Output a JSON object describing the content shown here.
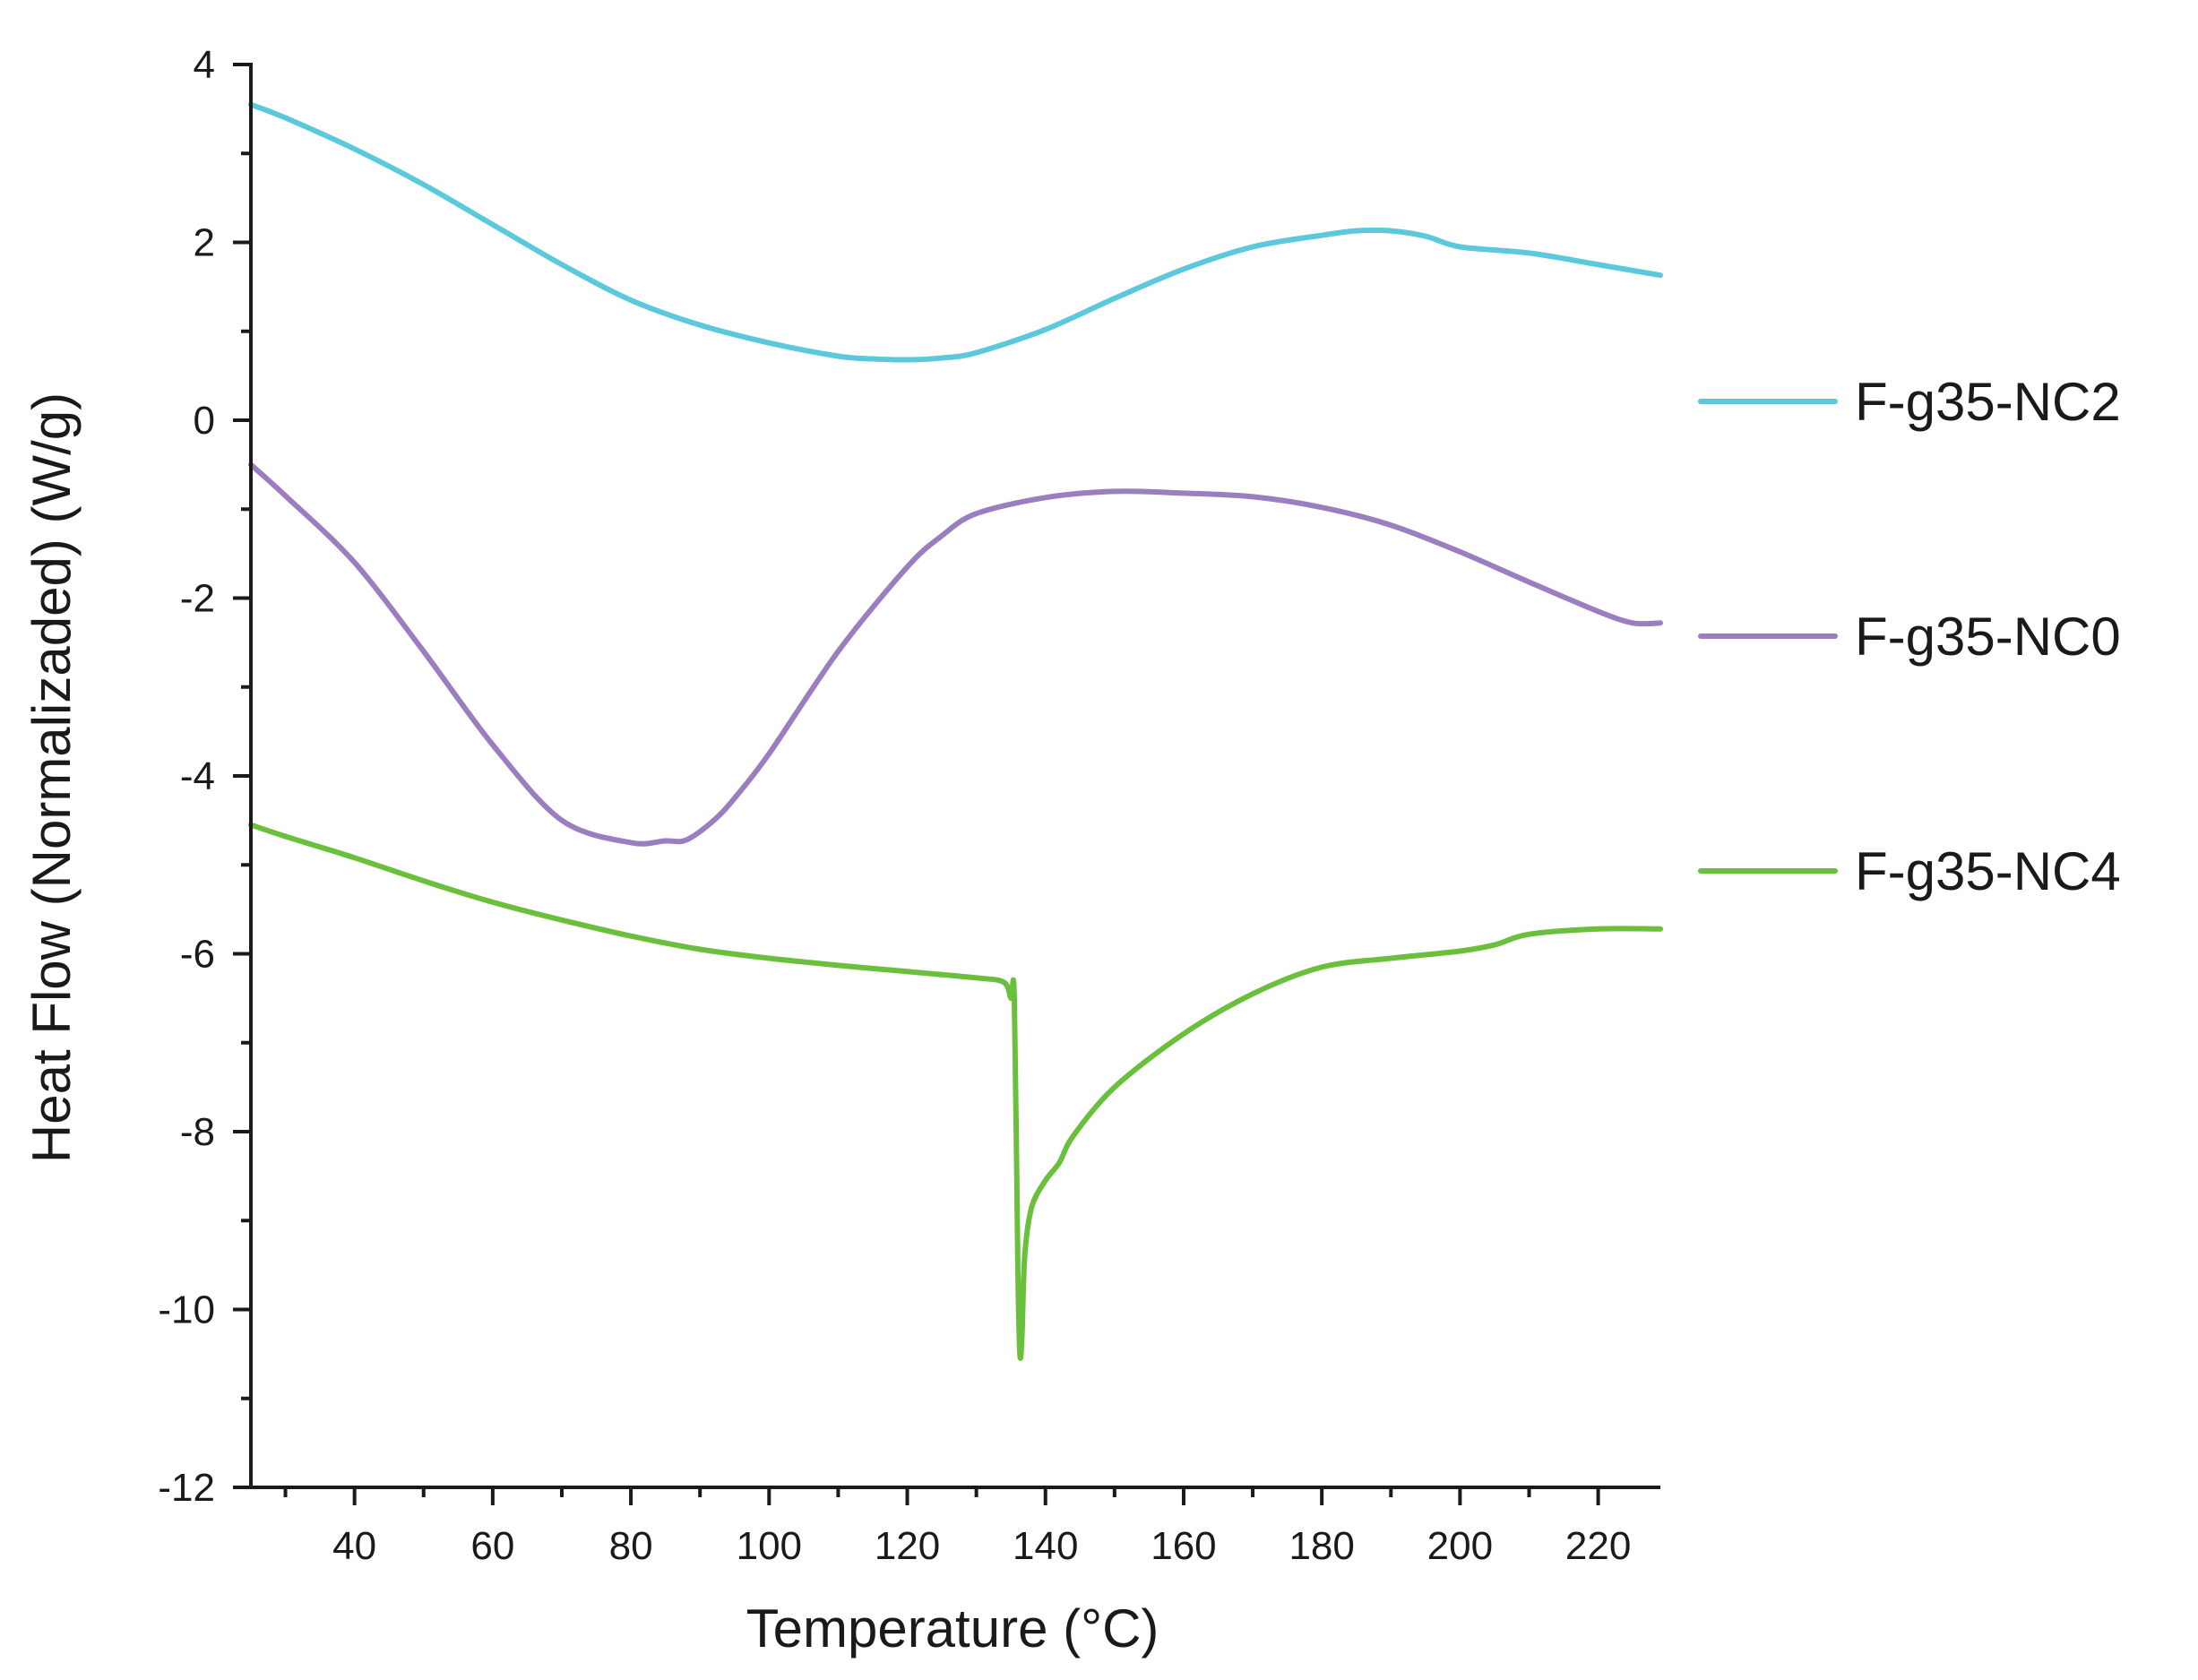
{
  "chart_data": {
    "type": "line",
    "xlabel": "Temperature (°C)",
    "ylabel": "Heat Flow (Normalizaded) (W/g)",
    "xlim": [
      25,
      229
    ],
    "ylim": [
      -12,
      4
    ],
    "x_ticks": [
      40,
      60,
      80,
      100,
      120,
      140,
      160,
      180,
      200,
      220
    ],
    "x_tick_labels": [
      "40",
      "60",
      "80",
      "100",
      "120",
      "140",
      "160",
      "180",
      "200",
      "220"
    ],
    "y_ticks": [
      4,
      2,
      0,
      -2,
      -4,
      -6,
      -8,
      -10,
      -12
    ],
    "y_tick_labels": [
      "4",
      "2",
      "0",
      "-2",
      "-4",
      "-6",
      "-8",
      "-10",
      "-12"
    ],
    "grid": false,
    "legend_position": "right",
    "series": [
      {
        "name": "F-g35-NC2",
        "color": "#5bc8dc",
        "x": [
          25,
          30,
          40,
          50,
          60,
          70,
          80,
          90,
          100,
          110,
          115,
          120,
          125,
          130,
          140,
          150,
          160,
          170,
          180,
          185,
          190,
          195,
          200,
          210,
          220,
          229
        ],
        "y": [
          3.55,
          3.4,
          3.05,
          2.65,
          2.2,
          1.75,
          1.35,
          1.07,
          0.87,
          0.72,
          0.69,
          0.68,
          0.7,
          0.76,
          1.02,
          1.37,
          1.7,
          1.95,
          2.08,
          2.13,
          2.13,
          2.07,
          1.95,
          1.88,
          1.75,
          1.63
        ]
      },
      {
        "name": "F-g35-NC0",
        "color": "#9b7ebf",
        "x": [
          25,
          30,
          40,
          50,
          60,
          70,
          80,
          85,
          88,
          92,
          95,
          100,
          110,
          120,
          125,
          130,
          140,
          150,
          160,
          170,
          180,
          190,
          200,
          210,
          220,
          225,
          229
        ],
        "y": [
          -0.5,
          -0.85,
          -1.6,
          -2.6,
          -3.65,
          -4.5,
          -4.75,
          -4.73,
          -4.72,
          -4.5,
          -4.25,
          -3.75,
          -2.6,
          -1.65,
          -1.3,
          -1.05,
          -0.87,
          -0.8,
          -0.82,
          -0.86,
          -0.98,
          -1.18,
          -1.48,
          -1.82,
          -2.15,
          -2.28,
          -2.28
        ]
      },
      {
        "name": "F-g35-NC4",
        "color": "#6abf3c",
        "x": [
          25,
          30,
          40,
          50,
          60,
          70,
          80,
          90,
          100,
          110,
          120,
          130,
          134,
          135,
          135.5,
          136,
          136.3,
          136.6,
          137,
          138,
          140,
          142,
          144,
          150,
          160,
          170,
          180,
          190,
          200,
          205,
          210,
          220,
          229
        ],
        "y": [
          -4.55,
          -4.68,
          -4.92,
          -5.18,
          -5.42,
          -5.62,
          -5.8,
          -5.95,
          -6.05,
          -6.13,
          -6.2,
          -6.27,
          -6.32,
          -6.5,
          -6.5,
          -9.5,
          -10.5,
          -10.3,
          -9.4,
          -8.85,
          -8.55,
          -8.35,
          -8.05,
          -7.5,
          -6.9,
          -6.45,
          -6.15,
          -6.05,
          -5.97,
          -5.9,
          -5.78,
          -5.72,
          -5.72
        ]
      }
    ]
  }
}
